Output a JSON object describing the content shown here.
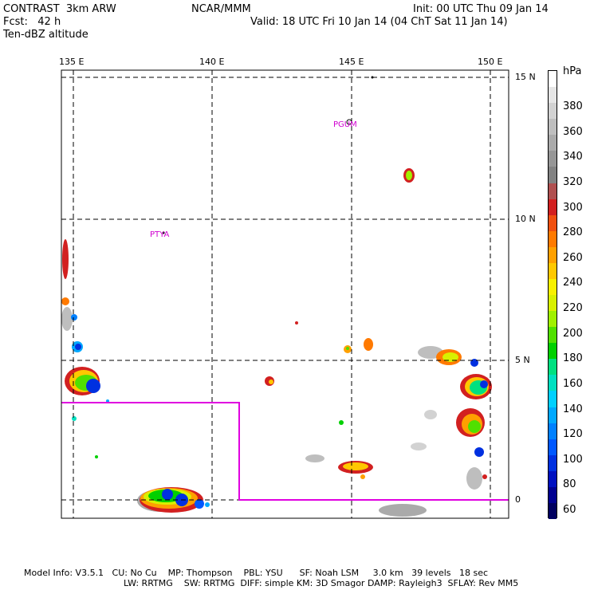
{
  "header": {
    "model": "CONTRAST  3km ARW",
    "center": "NCAR/MMM",
    "init": "Init: 00 UTC Thu 09 Jan 14",
    "fcst": "Fcst:   42 h",
    "valid": "Valid: 18 UTC Fri 10 Jan 14 (04 ChT Sat 11 Jan 14)",
    "field": "Ten-dBZ altitude"
  },
  "map": {
    "lon_labels": [
      "135 E",
      "140 E",
      "145 E",
      "150 E"
    ],
    "lat_labels": [
      "15 N",
      "10 N",
      "5 N",
      "0"
    ],
    "stations": [
      "PGUM",
      "PTYA"
    ],
    "box_color": "#e000e0",
    "grid_style": "dashed"
  },
  "colorbar": {
    "unit": "hPa",
    "labels": [
      "380",
      "360",
      "340",
      "320",
      "300",
      "280",
      "260",
      "240",
      "220",
      "200",
      "180",
      "160",
      "140",
      "120",
      "100",
      "80",
      "60"
    ],
    "colors": [
      "#ffffff",
      "#e6e6e6",
      "#d2d2d2",
      "#bebebe",
      "#aaaaaa",
      "#969696",
      "#828282",
      "#b05050",
      "#d22020",
      "#f05010",
      "#ff7a00",
      "#ffa000",
      "#ffc800",
      "#f8f000",
      "#d8f000",
      "#a0f000",
      "#50e000",
      "#00d000",
      "#00e080",
      "#00e0c0",
      "#00d0ff",
      "#00a8ff",
      "#0080ff",
      "#0058ff",
      "#0030e0",
      "#0010c0",
      "#000090",
      "#000060"
    ]
  },
  "footer": {
    "line1": "Model Info: V3.5.1   CU: No Cu    MP: Thompson    PBL: YSU      SF: Noah LSM     3.0 km   39 levels   18 sec",
    "line2": "LW: RRTMG    SW: RRTMG  DIFF: simple KM: 3D Smagor DAMP: Rayleigh3  SFLAY: Rev MM5"
  }
}
